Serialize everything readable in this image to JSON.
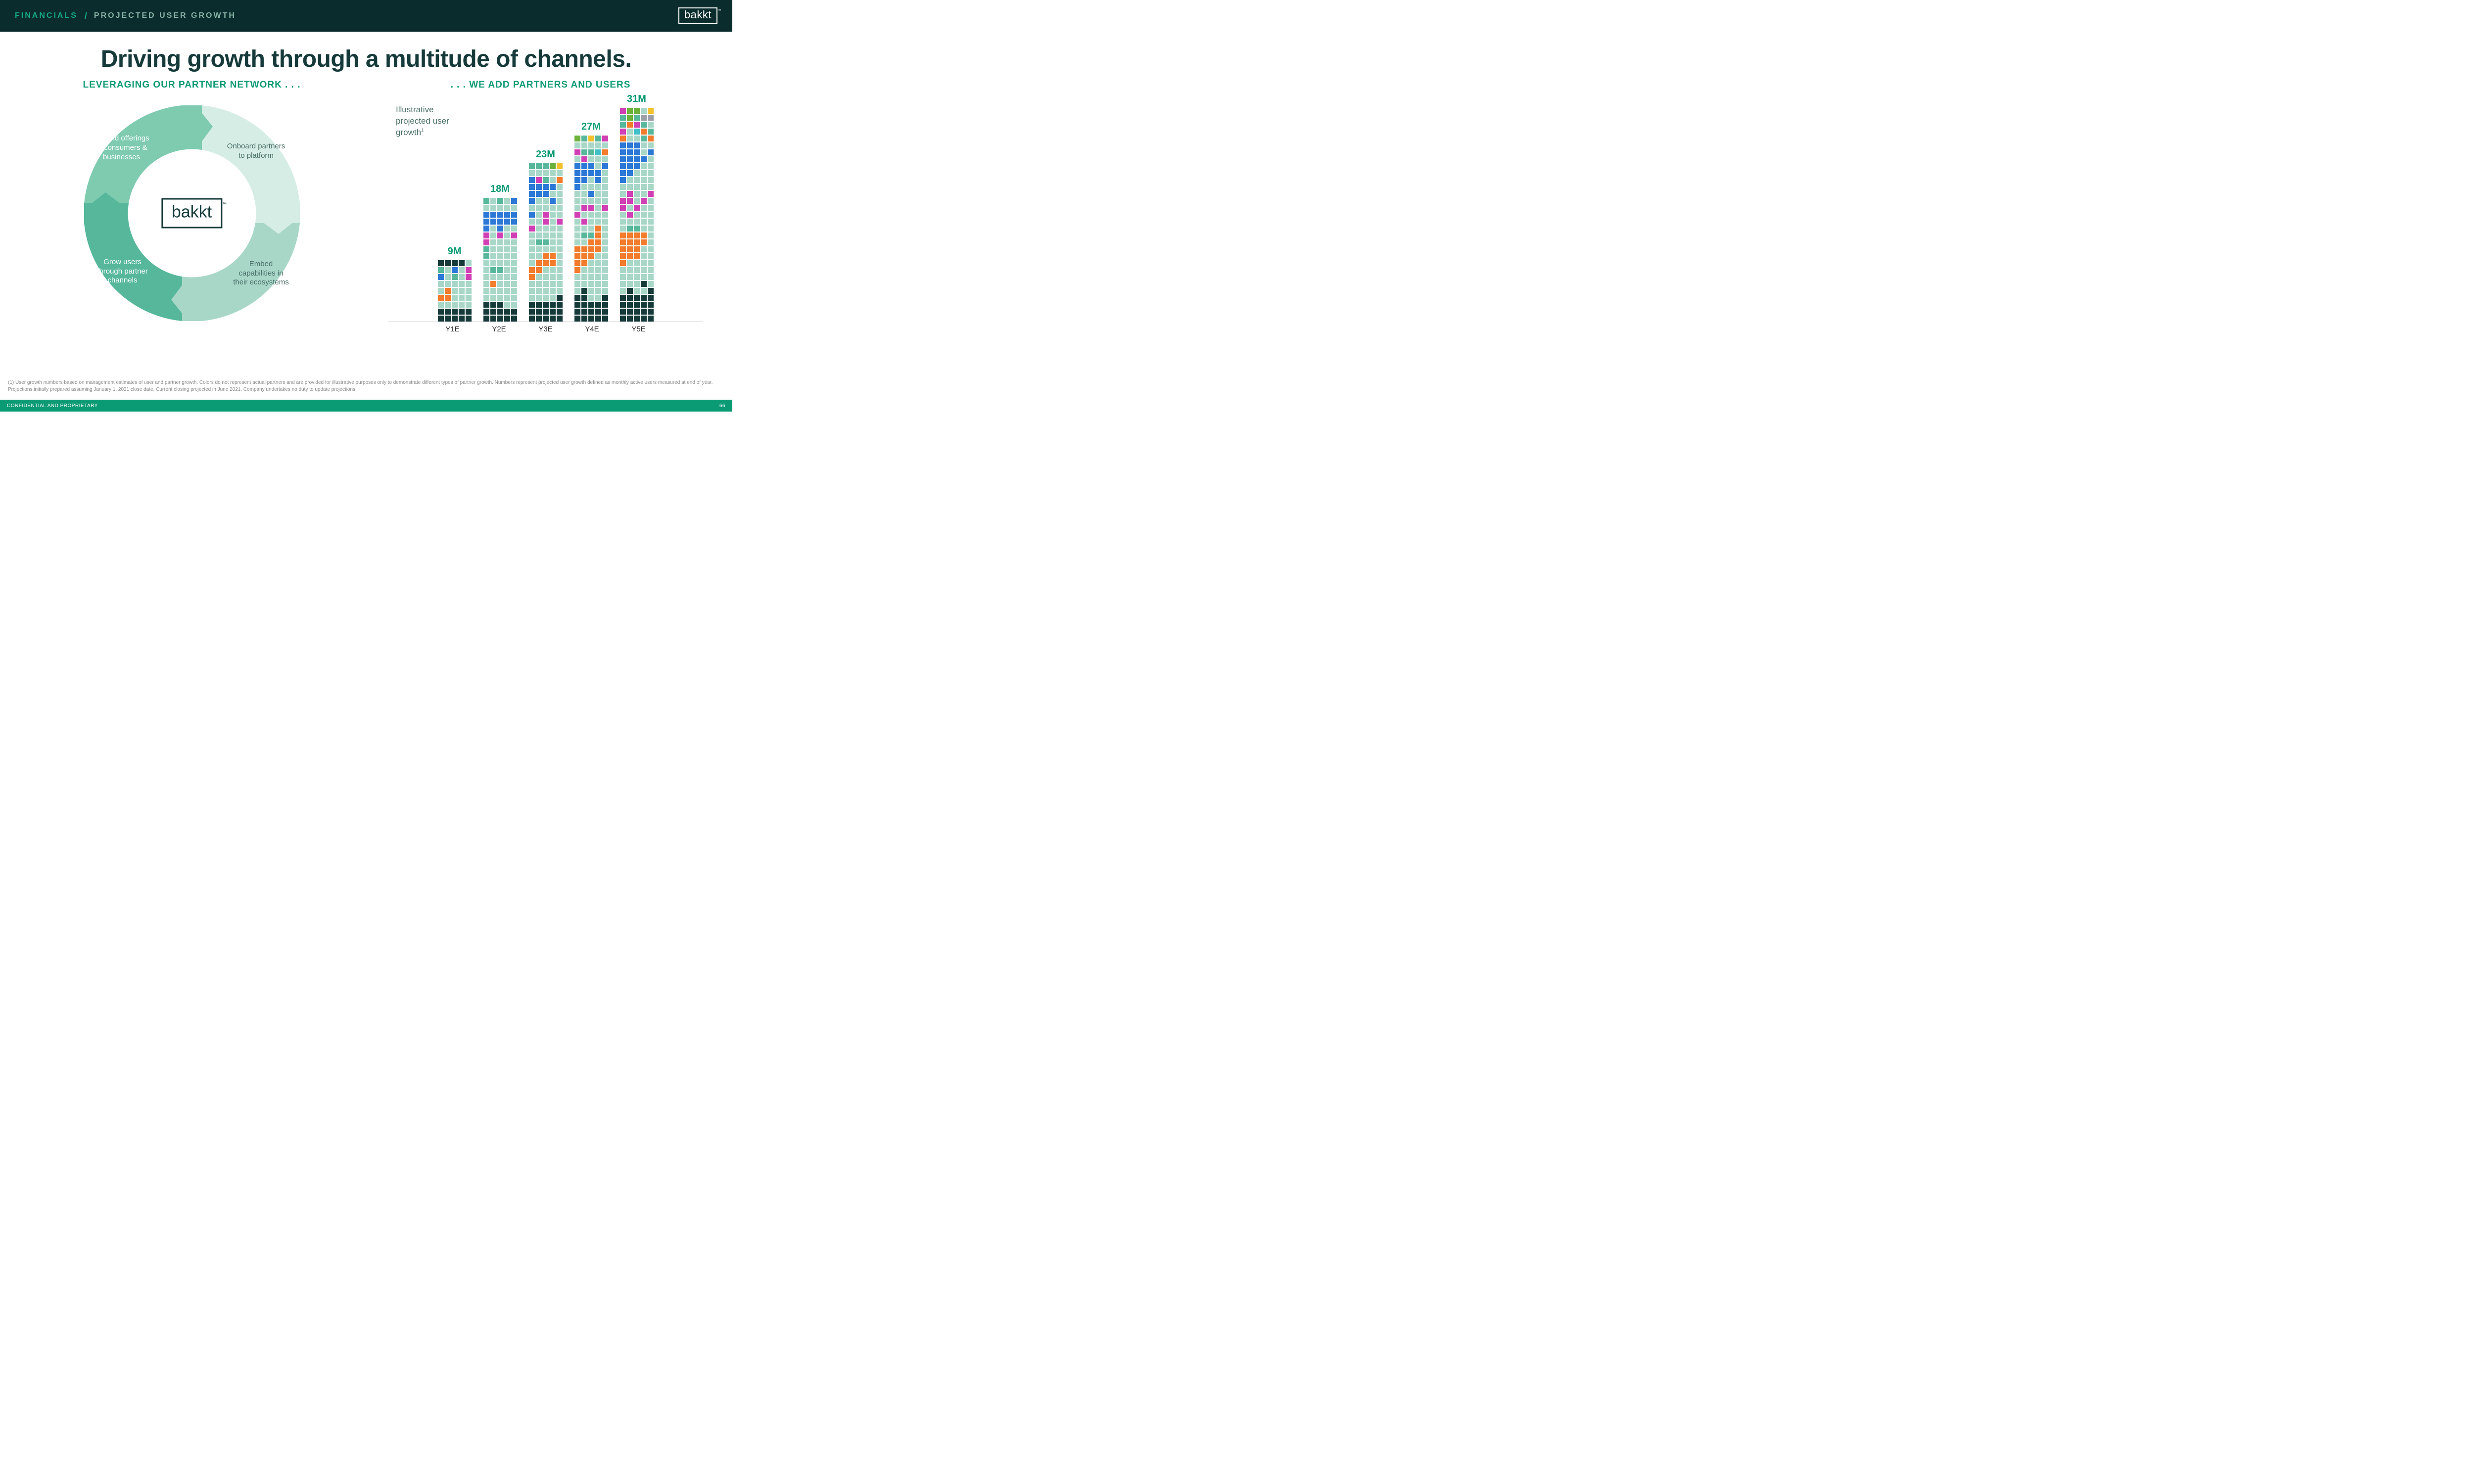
{
  "header": {
    "breadcrumb1": "FINANCIALS",
    "breadcrumb2": "PROJECTED USER GROWTH",
    "logo": "bakkt"
  },
  "title": "Driving growth through a multitude of channels.",
  "left_section": {
    "heading": "LEVERAGING OUR PARTNER NETWORK . . .",
    "center_logo": "bakkt",
    "segments": {
      "top_right": {
        "text": "Onboard partners to platform",
        "fill": "#d6ede5"
      },
      "bottom_right": {
        "text": "Embed capabilities in their ecosystems",
        "fill": "#a8d7c8"
      },
      "bottom_left": {
        "text": "Grow users through partner channels",
        "fill": "#56b79b"
      },
      "top_left": {
        "text": "Expand offerings to consumers & businesses",
        "fill": "#7ecbb0"
      }
    }
  },
  "right_section": {
    "heading": ". . . WE ADD PARTNERS AND USERS",
    "note": "Illustrative projected user growth",
    "colors": {
      "teal_dark": "#163a3a",
      "teal_mid": "#56b79b",
      "teal_light": "#a8d7c8",
      "blue": "#2b78d6",
      "orange": "#f27b2c",
      "magenta": "#d13fb4",
      "green": "#6bb13a",
      "yellow": "#f2c12c",
      "gray": "#9aa0a6",
      "cyan": "#3fbfc8"
    },
    "bars": [
      {
        "label": "Y1E",
        "value": "9M",
        "unit_count": 45,
        "rows": [
          [
            "teal_dark",
            "teal_dark",
            "teal_dark",
            "teal_dark",
            "teal_light"
          ],
          [
            "teal_mid",
            "teal_light",
            "blue",
            "teal_light",
            "magenta"
          ],
          [
            "blue",
            "teal_light",
            "teal_mid",
            "teal_light",
            "magenta"
          ],
          [
            "teal_light",
            "teal_light",
            "teal_light",
            "teal_light",
            "teal_light"
          ],
          [
            "teal_light",
            "orange",
            "teal_light",
            "teal_light",
            "teal_light"
          ],
          [
            "orange",
            "orange",
            "teal_light",
            "teal_light",
            "teal_light"
          ],
          [
            "teal_light",
            "teal_light",
            "teal_light",
            "teal_light",
            "teal_light"
          ],
          [
            "teal_dark",
            "teal_dark",
            "teal_dark",
            "teal_dark",
            "teal_dark"
          ],
          [
            "teal_dark",
            "teal_dark",
            "teal_dark",
            "teal_dark",
            "teal_dark"
          ]
        ]
      },
      {
        "label": "Y2E",
        "value": "18M",
        "unit_count": 90,
        "rows": [
          [
            "teal_mid",
            "teal_light",
            "teal_mid",
            "teal_light",
            "blue"
          ],
          [
            "teal_light",
            "teal_light",
            "teal_light",
            "teal_light",
            "teal_light"
          ],
          [
            "blue",
            "blue",
            "blue",
            "blue",
            "blue"
          ],
          [
            "blue",
            "blue",
            "blue",
            "blue",
            "blue"
          ],
          [
            "blue",
            "teal_light",
            "blue",
            "teal_light",
            "teal_light"
          ],
          [
            "magenta",
            "teal_light",
            "magenta",
            "teal_light",
            "magenta"
          ],
          [
            "magenta",
            "teal_light",
            "teal_light",
            "teal_light",
            "teal_light"
          ],
          [
            "teal_mid",
            "teal_light",
            "teal_light",
            "teal_light",
            "teal_light"
          ],
          [
            "teal_mid",
            "teal_light",
            "teal_light",
            "teal_light",
            "teal_light"
          ],
          [
            "teal_light",
            "teal_light",
            "teal_light",
            "teal_light",
            "teal_light"
          ],
          [
            "teal_light",
            "teal_mid",
            "teal_mid",
            "teal_light",
            "teal_light"
          ],
          [
            "teal_light",
            "teal_light",
            "teal_light",
            "teal_light",
            "teal_light"
          ],
          [
            "teal_light",
            "orange",
            "teal_light",
            "teal_light",
            "teal_light"
          ],
          [
            "teal_light",
            "teal_light",
            "teal_light",
            "teal_light",
            "teal_light"
          ],
          [
            "teal_light",
            "teal_light",
            "teal_light",
            "teal_light",
            "teal_light"
          ],
          [
            "teal_dark",
            "teal_dark",
            "teal_dark",
            "teal_light",
            "teal_light"
          ],
          [
            "teal_dark",
            "teal_dark",
            "teal_dark",
            "teal_dark",
            "teal_dark"
          ],
          [
            "teal_dark",
            "teal_dark",
            "teal_dark",
            "teal_dark",
            "teal_dark"
          ]
        ]
      },
      {
        "label": "Y3E",
        "value": "23M",
        "unit_count": 115,
        "rows": [
          [
            "teal_mid",
            "teal_mid",
            "teal_mid",
            "green",
            "yellow"
          ],
          [
            "teal_light",
            "teal_light",
            "teal_light",
            "teal_light",
            "teal_light"
          ],
          [
            "blue",
            "magenta",
            "teal_mid",
            "teal_light",
            "orange"
          ],
          [
            "blue",
            "blue",
            "blue",
            "blue",
            "teal_light"
          ],
          [
            "blue",
            "blue",
            "blue",
            "teal_light",
            "teal_light"
          ],
          [
            "blue",
            "teal_light",
            "teal_light",
            "blue",
            "teal_light"
          ],
          [
            "teal_light",
            "teal_light",
            "teal_light",
            "teal_light",
            "teal_light"
          ],
          [
            "blue",
            "teal_light",
            "magenta",
            "teal_light",
            "teal_light"
          ],
          [
            "teal_light",
            "teal_light",
            "magenta",
            "teal_light",
            "magenta"
          ],
          [
            "magenta",
            "teal_light",
            "teal_light",
            "teal_light",
            "teal_light"
          ],
          [
            "teal_light",
            "teal_light",
            "teal_light",
            "teal_light",
            "teal_light"
          ],
          [
            "teal_light",
            "teal_mid",
            "teal_mid",
            "teal_light",
            "teal_light"
          ],
          [
            "teal_light",
            "teal_light",
            "teal_light",
            "teal_light",
            "teal_light"
          ],
          [
            "teal_light",
            "teal_light",
            "orange",
            "orange",
            "teal_light"
          ],
          [
            "teal_light",
            "orange",
            "orange",
            "orange",
            "teal_light"
          ],
          [
            "orange",
            "orange",
            "teal_light",
            "teal_light",
            "teal_light"
          ],
          [
            "orange",
            "teal_light",
            "teal_light",
            "teal_light",
            "teal_light"
          ],
          [
            "teal_light",
            "teal_light",
            "teal_light",
            "teal_light",
            "teal_light"
          ],
          [
            "teal_light",
            "teal_light",
            "teal_light",
            "teal_light",
            "teal_light"
          ],
          [
            "teal_light",
            "teal_light",
            "teal_light",
            "teal_light",
            "teal_dark"
          ],
          [
            "teal_dark",
            "teal_dark",
            "teal_dark",
            "teal_dark",
            "teal_dark"
          ],
          [
            "teal_dark",
            "teal_dark",
            "teal_dark",
            "teal_dark",
            "teal_dark"
          ],
          [
            "teal_dark",
            "teal_dark",
            "teal_dark",
            "teal_dark",
            "teal_dark"
          ]
        ]
      },
      {
        "label": "Y4E",
        "value": "27M",
        "unit_count": 135,
        "rows": [
          [
            "green",
            "teal_mid",
            "yellow",
            "teal_mid",
            "magenta"
          ],
          [
            "teal_light",
            "teal_light",
            "teal_light",
            "teal_light",
            "teal_light"
          ],
          [
            "magenta",
            "teal_mid",
            "teal_mid",
            "cyan",
            "orange"
          ],
          [
            "teal_light",
            "magenta",
            "teal_light",
            "teal_light",
            "teal_light"
          ],
          [
            "blue",
            "blue",
            "blue",
            "teal_light",
            "blue"
          ],
          [
            "blue",
            "blue",
            "blue",
            "blue",
            "teal_light"
          ],
          [
            "blue",
            "blue",
            "teal_light",
            "blue",
            "teal_light"
          ],
          [
            "blue",
            "teal_light",
            "teal_light",
            "teal_light",
            "teal_light"
          ],
          [
            "teal_light",
            "teal_light",
            "blue",
            "teal_light",
            "teal_light"
          ],
          [
            "teal_light",
            "teal_light",
            "teal_light",
            "teal_light",
            "teal_light"
          ],
          [
            "teal_light",
            "magenta",
            "magenta",
            "teal_light",
            "magenta"
          ],
          [
            "magenta",
            "teal_light",
            "teal_light",
            "teal_light",
            "teal_light"
          ],
          [
            "teal_light",
            "magenta",
            "teal_light",
            "teal_light",
            "teal_light"
          ],
          [
            "teal_light",
            "teal_light",
            "teal_light",
            "orange",
            "teal_light"
          ],
          [
            "teal_light",
            "teal_mid",
            "teal_mid",
            "orange",
            "teal_light"
          ],
          [
            "teal_light",
            "teal_light",
            "orange",
            "orange",
            "teal_light"
          ],
          [
            "orange",
            "orange",
            "orange",
            "orange",
            "teal_light"
          ],
          [
            "orange",
            "orange",
            "orange",
            "teal_light",
            "teal_light"
          ],
          [
            "orange",
            "orange",
            "teal_light",
            "teal_light",
            "teal_light"
          ],
          [
            "orange",
            "teal_light",
            "teal_light",
            "teal_light",
            "teal_light"
          ],
          [
            "teal_light",
            "teal_light",
            "teal_light",
            "teal_light",
            "teal_light"
          ],
          [
            "teal_light",
            "teal_light",
            "teal_light",
            "teal_light",
            "teal_light"
          ],
          [
            "teal_light",
            "teal_dark",
            "teal_light",
            "teal_light",
            "teal_light"
          ],
          [
            "teal_dark",
            "teal_dark",
            "teal_light",
            "teal_light",
            "teal_dark"
          ],
          [
            "teal_dark",
            "teal_dark",
            "teal_dark",
            "teal_dark",
            "teal_dark"
          ],
          [
            "teal_dark",
            "teal_dark",
            "teal_dark",
            "teal_dark",
            "teal_dark"
          ],
          [
            "teal_dark",
            "teal_dark",
            "teal_dark",
            "teal_dark",
            "teal_dark"
          ]
        ]
      },
      {
        "label": "Y5E",
        "value": "31M",
        "unit_count": 155,
        "rows": [
          [
            "magenta",
            "green",
            "green",
            "teal_light",
            "yellow"
          ],
          [
            "teal_mid",
            "green",
            "teal_mid",
            "gray",
            "gray"
          ],
          [
            "teal_mid",
            "orange",
            "magenta",
            "teal_mid",
            "teal_light"
          ],
          [
            "magenta",
            "teal_light",
            "cyan",
            "orange",
            "teal_mid"
          ],
          [
            "orange",
            "teal_light",
            "teal_light",
            "teal_mid",
            "orange"
          ],
          [
            "blue",
            "blue",
            "blue",
            "teal_light",
            "teal_light"
          ],
          [
            "blue",
            "blue",
            "blue",
            "teal_light",
            "blue"
          ],
          [
            "blue",
            "blue",
            "blue",
            "blue",
            "teal_light"
          ],
          [
            "blue",
            "blue",
            "blue",
            "teal_light",
            "teal_light"
          ],
          [
            "blue",
            "blue",
            "teal_light",
            "teal_light",
            "teal_light"
          ],
          [
            "blue",
            "teal_light",
            "teal_light",
            "teal_light",
            "teal_light"
          ],
          [
            "teal_light",
            "teal_light",
            "teal_light",
            "teal_light",
            "teal_light"
          ],
          [
            "teal_light",
            "magenta",
            "teal_light",
            "teal_light",
            "magenta"
          ],
          [
            "magenta",
            "magenta",
            "teal_light",
            "magenta",
            "teal_light"
          ],
          [
            "magenta",
            "teal_light",
            "magenta",
            "teal_light",
            "teal_light"
          ],
          [
            "teal_light",
            "magenta",
            "teal_light",
            "teal_light",
            "teal_light"
          ],
          [
            "teal_light",
            "teal_light",
            "teal_light",
            "teal_light",
            "teal_light"
          ],
          [
            "teal_light",
            "teal_mid",
            "teal_mid",
            "teal_light",
            "teal_light"
          ],
          [
            "orange",
            "orange",
            "orange",
            "orange",
            "teal_light"
          ],
          [
            "orange",
            "orange",
            "orange",
            "orange",
            "teal_light"
          ],
          [
            "orange",
            "orange",
            "orange",
            "teal_light",
            "teal_light"
          ],
          [
            "orange",
            "orange",
            "orange",
            "teal_light",
            "teal_light"
          ],
          [
            "orange",
            "teal_light",
            "teal_light",
            "teal_light",
            "teal_light"
          ],
          [
            "teal_light",
            "teal_light",
            "teal_light",
            "teal_light",
            "teal_light"
          ],
          [
            "teal_light",
            "teal_light",
            "teal_light",
            "teal_light",
            "teal_light"
          ],
          [
            "teal_light",
            "teal_light",
            "teal_light",
            "teal_dark",
            "teal_light"
          ],
          [
            "teal_light",
            "teal_dark",
            "teal_light",
            "teal_light",
            "teal_dark"
          ],
          [
            "teal_dark",
            "teal_dark",
            "teal_dark",
            "teal_dark",
            "teal_dark"
          ],
          [
            "teal_dark",
            "teal_dark",
            "teal_dark",
            "teal_dark",
            "teal_dark"
          ],
          [
            "teal_dark",
            "teal_dark",
            "teal_dark",
            "teal_dark",
            "teal_dark"
          ],
          [
            "teal_dark",
            "teal_dark",
            "teal_dark",
            "teal_dark",
            "teal_dark"
          ]
        ]
      }
    ]
  },
  "footnote": "(1) User growth numbers based on management estimates of user and partner growth. Colors do not represent actual partners and are provided for illustrative purposes only to demonstrate different types of partner growth. Numbers represent projected user growth defined as monthly active users measured at end of year. Projections initially prepared assuming January 1, 2021 close date. Current closing projected in June 2021. Company undertakes no duty to update projections.",
  "footer": {
    "left": "CONFIDENTIAL AND PROPRIETARY",
    "page": "66"
  }
}
